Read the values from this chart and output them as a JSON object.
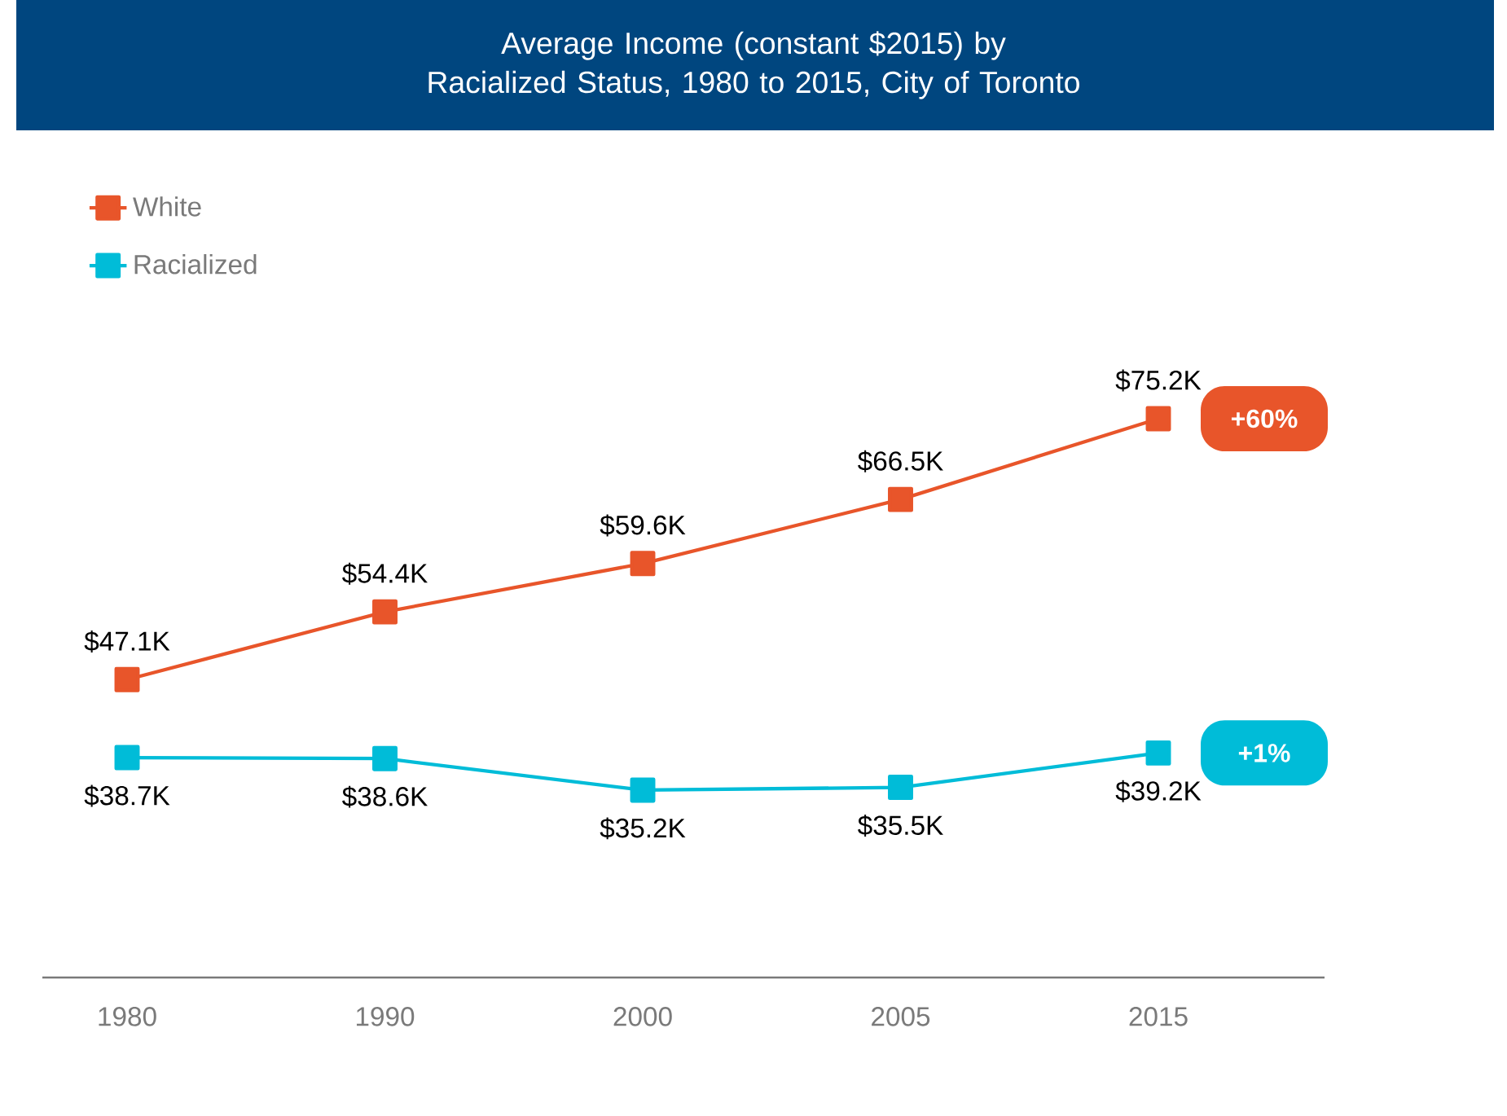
{
  "chart_data": {
    "type": "line",
    "title": "Average Income (constant $2015) by Racialized Status, 1980 to 2015, City of Toronto",
    "categories": [
      "1980",
      "1990",
      "2000",
      "2005",
      "2015"
    ],
    "series": [
      {
        "name": "White",
        "color": "#e8552a",
        "values": [
          47.1,
          54.4,
          59.6,
          66.5,
          75.2
        ],
        "value_labels": [
          "$47.1K",
          "$54.4K",
          "$59.6K",
          "$66.5K",
          "$75.2K"
        ]
      },
      {
        "name": "Racialized",
        "color": "#00bcd8",
        "values": [
          38.7,
          38.6,
          35.2,
          35.5,
          39.2
        ],
        "value_labels": [
          "$38.7K",
          "$38.6K",
          "$35.2K",
          "$35.5K",
          "$39.2K"
        ]
      }
    ],
    "marker": "square",
    "legend": "top left",
    "annotations": [
      "+60%",
      "+1%"
    ]
  }
}
